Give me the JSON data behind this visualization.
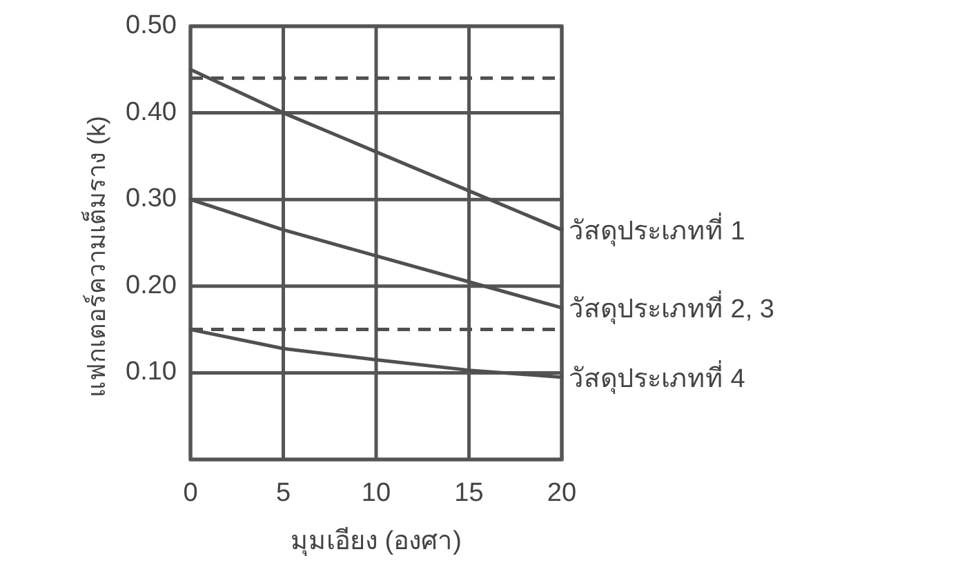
{
  "chart_data": {
    "type": "line",
    "xlabel": "มุมเอียง (องศา)",
    "ylabel": "แฟกเตอร์ความเต็มราง (k)",
    "xlim": [
      0,
      20
    ],
    "xticks": [
      0,
      5,
      10,
      15,
      20
    ],
    "ylim": [
      0,
      0.5
    ],
    "yticks": [
      {
        "value": 0,
        "label": null
      },
      {
        "value": 0.1,
        "label": "0.10"
      },
      {
        "value": 0.2,
        "label": "0.20"
      },
      {
        "value": 0.3,
        "label": "0.30"
      },
      {
        "value": 0.4,
        "label": "0.40"
      },
      {
        "value": 0.5,
        "label": "0.50"
      }
    ],
    "grid": true,
    "marker": "none",
    "line_style": "solid",
    "x": [
      0,
      5,
      10,
      15,
      20
    ],
    "series": [
      {
        "name": "วัสดุประเภทที่ 1",
        "color": "#505050",
        "values": [
          0.45,
          0.4,
          0.355,
          0.31,
          0.265
        ]
      },
      {
        "name": "วัสดุประเภทที่ 2, 3",
        "color": "#505050",
        "values": [
          0.3,
          0.265,
          0.235,
          0.205,
          0.175
        ]
      },
      {
        "name": "วัสดุประเภทที่ 4",
        "color": "#505050",
        "values": [
          0.15,
          0.128,
          0.115,
          0.103,
          0.095
        ]
      }
    ],
    "ref_lines": [
      {
        "axis": "y",
        "value": 0.44,
        "color": "#505050",
        "line_style": "dashed"
      },
      {
        "axis": "y",
        "value": 0.15,
        "color": "#505050",
        "line_style": "dashed"
      }
    ]
  }
}
